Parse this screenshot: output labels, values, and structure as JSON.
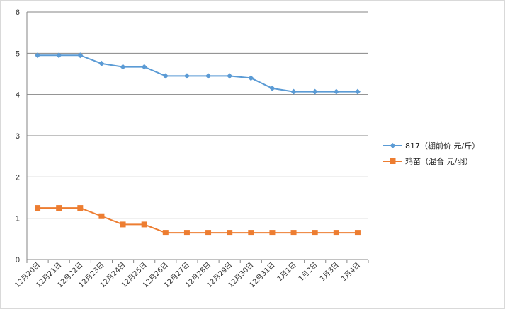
{
  "chart_data": {
    "type": "line",
    "title": "",
    "xlabel": "",
    "ylabel": "",
    "ylim": [
      0,
      6
    ],
    "yticks": [
      0,
      1,
      2,
      3,
      4,
      5,
      6
    ],
    "grid": "horizontal",
    "legend_position": "right",
    "categories": [
      "12月20日",
      "12月21日",
      "12月22日",
      "12月23日",
      "12月24日",
      "12月25日",
      "12月26日",
      "12月27日",
      "12月28日",
      "12月29日",
      "12月30日",
      "12月31日",
      "1月1日",
      "1月2日",
      "1月3日",
      "1月4日"
    ],
    "series": [
      {
        "name": "817（棚前价 元/斤）",
        "color": "#5b9bd5",
        "marker": "diamond",
        "values": [
          4.95,
          4.95,
          4.95,
          4.75,
          4.67,
          4.67,
          4.45,
          4.45,
          4.45,
          4.45,
          4.4,
          4.15,
          4.07,
          4.07,
          4.07,
          4.07
        ]
      },
      {
        "name": "鸡苗（混合 元/羽）",
        "color": "#ed7d31",
        "marker": "square",
        "values": [
          1.25,
          1.25,
          1.25,
          1.05,
          0.85,
          0.85,
          0.65,
          0.65,
          0.65,
          0.65,
          0.65,
          0.65,
          0.65,
          0.65,
          0.65,
          0.65
        ]
      }
    ]
  }
}
